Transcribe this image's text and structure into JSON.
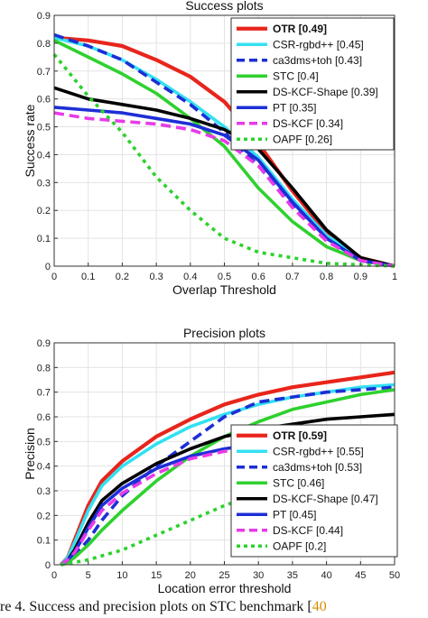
{
  "caption": {
    "text": "re 4. Success and precision plots on STC benchmark [",
    "ref": "40"
  },
  "chart_data": [
    {
      "type": "line",
      "title": "Success plots",
      "xlabel": "Overlap Threshold",
      "ylabel": "Success rate",
      "xlim": [
        0,
        1
      ],
      "ylim": [
        0,
        0.9
      ],
      "xticks": [
        0,
        0.1,
        0.2,
        0.3,
        0.4,
        0.5,
        0.6,
        0.7,
        0.8,
        0.9,
        1
      ],
      "xtick_labels": [
        "0",
        "0.1",
        "0.2",
        "0.3",
        "0.4",
        "0.5",
        "0.6",
        "0.7",
        "0.8",
        "0.9",
        "1"
      ],
      "yticks": [
        0,
        0.1,
        0.2,
        0.3,
        0.4,
        0.5,
        0.6,
        0.7,
        0.8,
        0.9
      ],
      "ytick_labels": [
        "0",
        "0.1",
        "0.2",
        "0.3",
        "0.4",
        "0.5",
        "0.6",
        "0.7",
        "0.8",
        "0.9"
      ],
      "grid": true,
      "legend_position": "top-right",
      "series": [
        {
          "name": "OTR [0.49]",
          "color": "#e8251c",
          "dash": "solid",
          "bold": true,
          "x": [
            0,
            0.1,
            0.2,
            0.3,
            0.4,
            0.5,
            0.55,
            0.6,
            0.7,
            0.8,
            0.9,
            1
          ],
          "y": [
            0.82,
            0.81,
            0.79,
            0.74,
            0.68,
            0.59,
            0.52,
            0.44,
            0.27,
            0.12,
            0.03,
            0
          ]
        },
        {
          "name": "CSR-rgbd++ [0.45]",
          "color": "#33e0f2",
          "dash": "solid",
          "bold": false,
          "x": [
            0,
            0.1,
            0.2,
            0.3,
            0.4,
            0.5,
            0.6,
            0.7,
            0.8,
            0.9,
            1
          ],
          "y": [
            0.82,
            0.79,
            0.74,
            0.67,
            0.59,
            0.5,
            0.39,
            0.24,
            0.11,
            0.03,
            0
          ]
        },
        {
          "name": "ca3dms+toh [0.43]",
          "color": "#1c2fd6",
          "dash": "dashed",
          "bold": false,
          "x": [
            0,
            0.1,
            0.2,
            0.3,
            0.4,
            0.5,
            0.6,
            0.7,
            0.8,
            0.9,
            1
          ],
          "y": [
            0.83,
            0.79,
            0.74,
            0.66,
            0.58,
            0.48,
            0.36,
            0.22,
            0.1,
            0.02,
            0
          ]
        },
        {
          "name": "STC [0.4]",
          "color": "#2ed12e",
          "dash": "solid",
          "bold": false,
          "x": [
            0,
            0.1,
            0.2,
            0.3,
            0.4,
            0.5,
            0.6,
            0.7,
            0.8,
            0.9,
            1
          ],
          "y": [
            0.81,
            0.75,
            0.69,
            0.62,
            0.53,
            0.43,
            0.28,
            0.16,
            0.07,
            0.02,
            0
          ]
        },
        {
          "name": "DS-KCF-Shape [0.39]",
          "color": "#000000",
          "dash": "solid",
          "bold": false,
          "x": [
            0,
            0.1,
            0.2,
            0.3,
            0.4,
            0.5,
            0.6,
            0.7,
            0.8,
            0.9,
            1
          ],
          "y": [
            0.64,
            0.6,
            0.58,
            0.56,
            0.53,
            0.49,
            0.42,
            0.28,
            0.13,
            0.03,
            0
          ]
        },
        {
          "name": "PT [0.35]",
          "color": "#1c2fd6",
          "dash": "solid",
          "bold": false,
          "x": [
            0,
            0.1,
            0.2,
            0.3,
            0.4,
            0.5,
            0.6,
            0.7,
            0.8,
            0.9,
            1
          ],
          "y": [
            0.57,
            0.56,
            0.55,
            0.53,
            0.51,
            0.47,
            0.38,
            0.23,
            0.1,
            0.02,
            0
          ]
        },
        {
          "name": "DS-KCF [0.34]",
          "color": "#e83ae8",
          "dash": "dashed",
          "bold": false,
          "x": [
            0,
            0.1,
            0.2,
            0.3,
            0.4,
            0.5,
            0.6,
            0.7,
            0.8,
            0.9,
            1
          ],
          "y": [
            0.55,
            0.53,
            0.52,
            0.51,
            0.49,
            0.45,
            0.36,
            0.21,
            0.09,
            0.02,
            0
          ]
        },
        {
          "name": "OAPF [0.26]",
          "color": "#2ed12e",
          "dash": "dotted",
          "bold": false,
          "x": [
            0,
            0.1,
            0.2,
            0.3,
            0.4,
            0.5,
            0.6,
            0.7,
            0.8,
            0.9,
            1
          ],
          "y": [
            0.76,
            0.61,
            0.48,
            0.32,
            0.2,
            0.1,
            0.05,
            0.03,
            0.01,
            0.005,
            0
          ]
        }
      ]
    },
    {
      "type": "line",
      "title": "Precision plots",
      "xlabel": "Location error threshold",
      "ylabel": "Precision",
      "xlim": [
        0,
        50
      ],
      "ylim": [
        0,
        0.9
      ],
      "xticks": [
        0,
        5,
        10,
        15,
        20,
        25,
        30,
        35,
        40,
        45,
        50
      ],
      "xtick_labels": [
        "0",
        "5",
        "10",
        "15",
        "20",
        "25",
        "30",
        "35",
        "40",
        "45",
        "50"
      ],
      "yticks": [
        0,
        0.1,
        0.2,
        0.3,
        0.4,
        0.5,
        0.6,
        0.7,
        0.8,
        0.9
      ],
      "ytick_labels": [
        "0",
        "0.1",
        "0.2",
        "0.3",
        "0.4",
        "0.5",
        "0.6",
        "0.7",
        "0.8",
        "0.9"
      ],
      "grid": true,
      "legend_position": "bottom-right",
      "series": [
        {
          "name": "OTR [0.59]",
          "color": "#e8251c",
          "dash": "solid",
          "bold": true,
          "x": [
            1,
            2,
            3,
            5,
            7,
            10,
            15,
            20,
            25,
            30,
            35,
            40,
            45,
            50
          ],
          "y": [
            0,
            0.03,
            0.1,
            0.24,
            0.34,
            0.42,
            0.52,
            0.59,
            0.65,
            0.69,
            0.72,
            0.74,
            0.76,
            0.78
          ]
        },
        {
          "name": "CSR-rgbd++ [0.55]",
          "color": "#33e0f2",
          "dash": "solid",
          "bold": false,
          "x": [
            1,
            2,
            3,
            5,
            7,
            10,
            15,
            20,
            25,
            30,
            35,
            40,
            45,
            50
          ],
          "y": [
            0,
            0.03,
            0.09,
            0.22,
            0.32,
            0.4,
            0.49,
            0.56,
            0.61,
            0.65,
            0.68,
            0.7,
            0.72,
            0.73
          ]
        },
        {
          "name": "ca3dms+toh [0.53]",
          "color": "#1c2fd6",
          "dash": "dashed",
          "bold": false,
          "x": [
            1,
            2,
            3,
            5,
            7,
            10,
            15,
            20,
            25,
            30,
            35,
            40,
            45,
            50
          ],
          "y": [
            0,
            0.01,
            0.04,
            0.1,
            0.18,
            0.28,
            0.4,
            0.5,
            0.6,
            0.66,
            0.68,
            0.7,
            0.71,
            0.72
          ]
        },
        {
          "name": "STC [0.46]",
          "color": "#2ed12e",
          "dash": "solid",
          "bold": false,
          "x": [
            1,
            2,
            3,
            5,
            7,
            10,
            15,
            20,
            25,
            30,
            35,
            40,
            45,
            50
          ],
          "y": [
            0,
            0.01,
            0.03,
            0.08,
            0.14,
            0.22,
            0.34,
            0.44,
            0.52,
            0.58,
            0.63,
            0.66,
            0.69,
            0.71
          ]
        },
        {
          "name": "DS-KCF-Shape [0.47]",
          "color": "#000000",
          "dash": "solid",
          "bold": false,
          "x": [
            1,
            2,
            3,
            5,
            7,
            10,
            15,
            20,
            25,
            30,
            35,
            40,
            45,
            50
          ],
          "y": [
            0,
            0.02,
            0.06,
            0.17,
            0.26,
            0.33,
            0.41,
            0.47,
            0.52,
            0.55,
            0.57,
            0.59,
            0.6,
            0.61
          ]
        },
        {
          "name": "PT [0.45]",
          "color": "#1c2fd6",
          "dash": "solid",
          "bold": false,
          "x": [
            1,
            2,
            3,
            5,
            7,
            10,
            15,
            20,
            25,
            30,
            35,
            40,
            45,
            50
          ],
          "y": [
            0,
            0.02,
            0.05,
            0.15,
            0.24,
            0.31,
            0.39,
            0.44,
            0.47,
            0.49,
            0.5,
            0.51,
            0.52,
            0.52
          ]
        },
        {
          "name": "DS-KCF [0.44]",
          "color": "#e83ae8",
          "dash": "dashed",
          "bold": false,
          "x": [
            1,
            2,
            3,
            5,
            7,
            10,
            15,
            20,
            25,
            30,
            35,
            40,
            45,
            50
          ],
          "y": [
            0,
            0.02,
            0.05,
            0.14,
            0.22,
            0.29,
            0.37,
            0.43,
            0.46,
            0.48,
            0.49,
            0.5,
            0.51,
            0.51
          ]
        },
        {
          "name": "OAPF [0.2]",
          "color": "#2ed12e",
          "dash": "dotted",
          "bold": false,
          "x": [
            1,
            2,
            3,
            5,
            10,
            15,
            20,
            25,
            30,
            35,
            40,
            45,
            50
          ],
          "y": [
            0,
            0.005,
            0.01,
            0.02,
            0.06,
            0.12,
            0.18,
            0.24,
            0.29,
            0.33,
            0.37,
            0.4,
            0.42
          ]
        }
      ]
    }
  ]
}
